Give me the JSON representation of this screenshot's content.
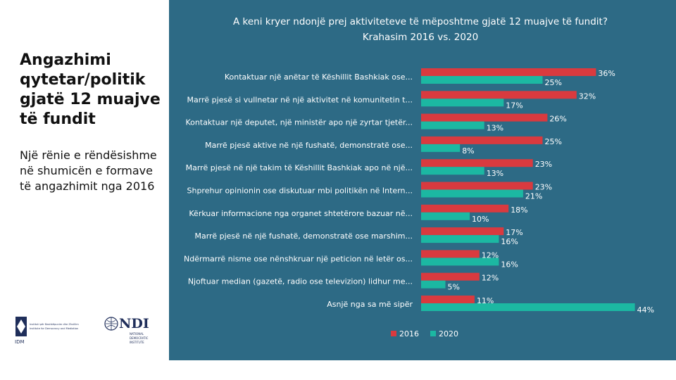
{
  "left": {
    "heading": "Angazhimi qytetar/politik gjatë 12 muajve të fundit",
    "subtext": "Një rënie e rëndësishme në shumicën e formave të angazhimit nga 2016"
  },
  "logos": {
    "iddm_label": "IDM",
    "iddm_text_1": "Instituti për Bashkëpunim dhe Zhvillim",
    "iddm_text_2": "Institute for Democracy and Mediation",
    "ndi_label": "NDI",
    "ndi_text_1": "NATIONAL",
    "ndi_text_2": "DEMOCRATIC",
    "ndi_text_3": "INSTITUTE"
  },
  "colors": {
    "series_2016": "#d93a3f",
    "series_2020": "#1cb8a2",
    "panel": "#2d6a85"
  },
  "chart_data": {
    "type": "bar",
    "orientation": "horizontal",
    "title_line1": "A keni kryer ndonjë prej aktiviteteve të mëposhtme gjatë 12 muajve të fundit?",
    "title_line2": "Krahasim 2016 vs. 2020",
    "categories": [
      "Kontaktuar një anëtar të Këshillit Bashkiak ose...",
      "Marrë pjesë si vullnetar në një aktivitet në komunitetin t...",
      "Kontaktuar një deputet, një ministër apo një zyrtar tjetër...",
      "Marrë pjesë aktive në një fushatë, demonstratë ose...",
      "Marrë pjesë në një takim të Këshillit Bashkiak apo në një...",
      "Shprehur opinionin ose diskutuar mbi politikën në Intern...",
      "Kërkuar informacione nga organet shtetërore bazuar në...",
      "Marrë pjesë në një fushatë, demonstratë ose marshim...",
      "Ndërmarrë nisme ose nënshkruar një peticion në letër os...",
      "Njoftuar median (gazetë, radio ose televizion) lidhur me...",
      "Asnjë nga sa më sipër"
    ],
    "series": [
      {
        "name": "2016",
        "values": [
          36,
          32,
          26,
          25,
          23,
          23,
          18,
          17,
          12,
          12,
          11
        ],
        "labels": [
          "36%",
          "32%",
          "26%",
          "25%",
          "23%",
          "23%",
          "18%",
          "17%",
          "12%",
          "12%",
          "11%"
        ]
      },
      {
        "name": "2020",
        "values": [
          25,
          17,
          13,
          8,
          13,
          21,
          10,
          16,
          16,
          5,
          44
        ],
        "labels": [
          "25%",
          "17%",
          "13%",
          "8%",
          "13%",
          "21%",
          "10%",
          "16%",
          "16%",
          "5%",
          "44%"
        ]
      }
    ],
    "xlim": [
      0,
      44
    ],
    "legend_position": "bottom"
  }
}
